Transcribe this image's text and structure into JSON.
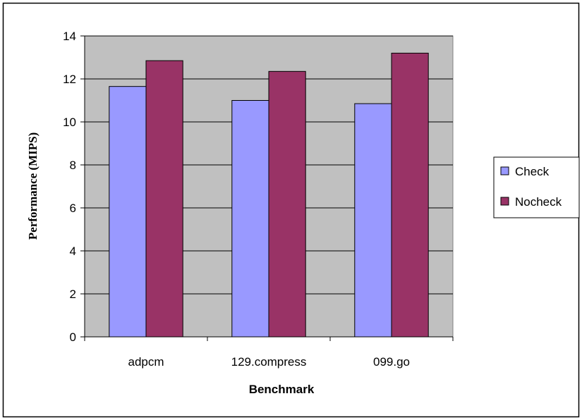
{
  "chart_data": {
    "type": "bar",
    "title": "",
    "xlabel": "Benchmark",
    "ylabel": "Performance (MIPS)",
    "categories": [
      "adpcm",
      "129.compress",
      "099.go"
    ],
    "series": [
      {
        "name": "Check",
        "values": [
          11.65,
          11.0,
          10.85
        ],
        "color": "#9999ff"
      },
      {
        "name": "Nocheck",
        "values": [
          12.85,
          12.35,
          13.2
        ],
        "color": "#993366"
      }
    ],
    "ylim": [
      0,
      14
    ],
    "yticks": [
      "0",
      "2",
      "4",
      "6",
      "8",
      "10",
      "12",
      "14"
    ],
    "grid": true,
    "legend_position": "right",
    "plot_background": "#c0c0c0"
  }
}
